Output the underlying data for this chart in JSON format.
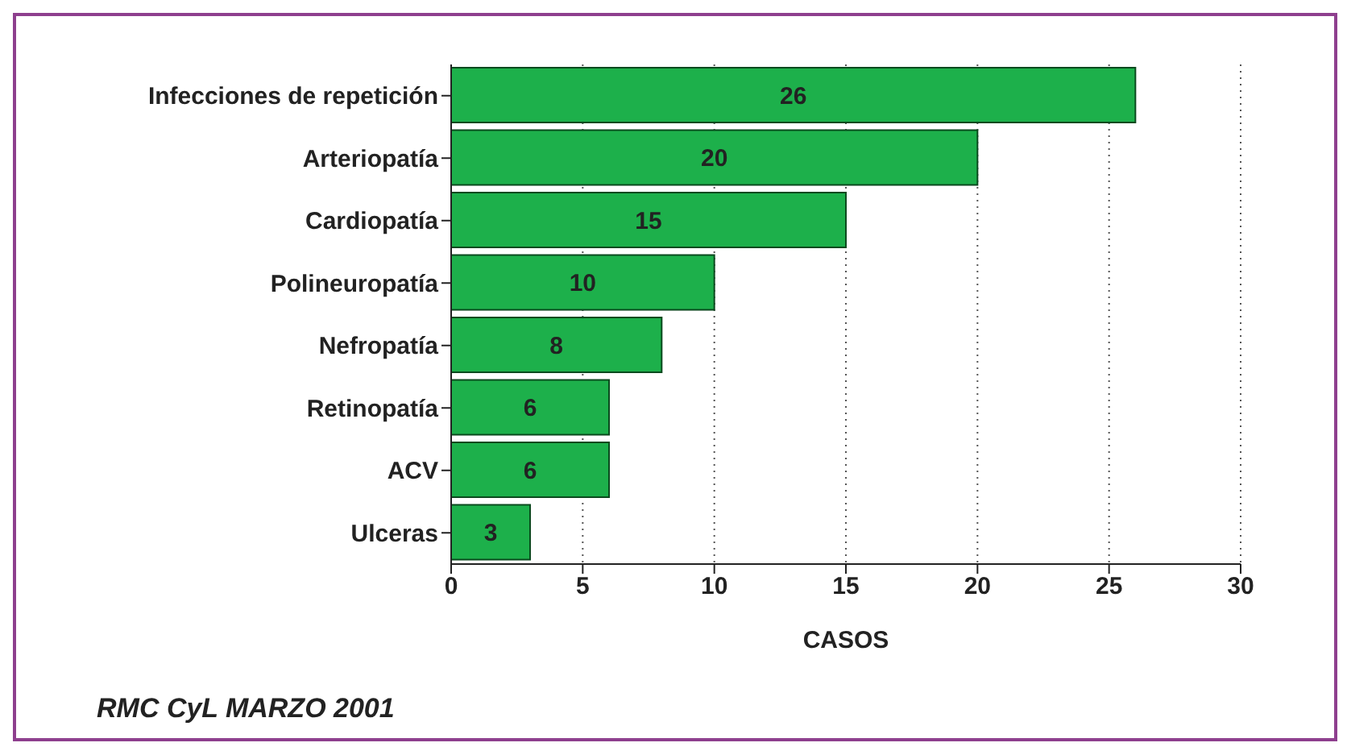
{
  "chart_data": {
    "type": "bar",
    "orientation": "horizontal",
    "categories": [
      "Infecciones de repetición",
      "Arteriopatía",
      "Cardiopatía",
      "Polineuropatía",
      "Nefropatía",
      "Retinopatía",
      "ACV",
      "Ulceras"
    ],
    "values": [
      26,
      20,
      15,
      10,
      8,
      6,
      6,
      3
    ],
    "color": "#1db04b",
    "xlim": [
      0,
      30
    ],
    "xticks": [
      0,
      5,
      10,
      15,
      20,
      25,
      30
    ],
    "xlabel": "CASOS",
    "grid": "x",
    "data_labels": true,
    "annotations": [
      "RMC CyL MARZO 2001"
    ]
  }
}
